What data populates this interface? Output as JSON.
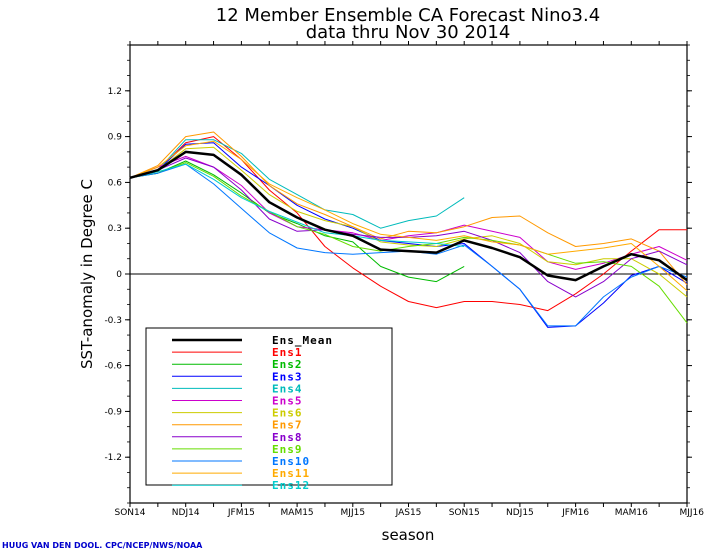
{
  "header": {
    "title_line1": "12 Member Ensemble CA Forecast Nino3.4",
    "title_line2": "data thru Nov 30 2014"
  },
  "credit": "HUUG VAN DEN DOOL. CPC/NCEP/NWS/NOAA",
  "chart_data": {
    "type": "line",
    "xlabel": "season",
    "ylabel": "SST-anomaly in Degree C",
    "ylim": [
      -1.5,
      1.5
    ],
    "grid": false,
    "legend_position": "bottom-left",
    "x": [
      "SON14",
      "OND14",
      "NDJ14",
      "DJF15",
      "JFM15",
      "FMA15",
      "MAM15",
      "AMJ15",
      "MJJ15",
      "JJA15",
      "JAS15",
      "ASO15",
      "SON15",
      "OND15",
      "NDJ15",
      "DJF16",
      "JFM16",
      "FMA16",
      "MAM16",
      "AMJ16",
      "MJJ16"
    ],
    "x_tick_labels": [
      "SON14",
      "NDJ14",
      "JFM15",
      "MAM15",
      "MJJ15",
      "JAS15",
      "SON15",
      "NDJ15",
      "JFM16",
      "MAM16",
      "MJJ16"
    ],
    "y_ticks": [
      1.2,
      0.9,
      0.6,
      0.3,
      0,
      -0.3,
      -0.6,
      -0.9,
      -1.2
    ],
    "y_tick_labels": [
      "1.2",
      "0.9",
      "0.6",
      "0.3",
      "0",
      "-0.3",
      "-0.6",
      "-0.9",
      "-1.2"
    ],
    "series": [
      {
        "name": "Ens_Mean",
        "color": "#000000",
        "width": 2.5,
        "values": [
          0.63,
          0.68,
          0.8,
          0.78,
          0.65,
          0.47,
          0.37,
          0.29,
          0.25,
          0.16,
          0.15,
          0.14,
          0.22,
          0.17,
          0.11,
          -0.01,
          -0.04,
          0.05,
          0.13,
          0.09,
          -0.04
        ]
      },
      {
        "name": "Ens1",
        "color": "#ff0000",
        "width": 1,
        "values": [
          0.63,
          0.68,
          0.86,
          0.9,
          0.75,
          0.55,
          0.4,
          0.18,
          0.04,
          -0.08,
          -0.18,
          -0.22,
          -0.18,
          -0.18,
          -0.2,
          -0.24,
          -0.13,
          0.0,
          0.15,
          0.29,
          0.29
        ]
      },
      {
        "name": "Ens2",
        "color": "#00bb00",
        "width": 1,
        "values": [
          0.63,
          0.66,
          0.74,
          0.65,
          0.53,
          0.4,
          0.33,
          0.25,
          0.21,
          0.05,
          -0.02,
          -0.05,
          0.05,
          null,
          null,
          null,
          null,
          null,
          null,
          null,
          null
        ]
      },
      {
        "name": "Ens3",
        "color": "#0000ff",
        "width": 1,
        "values": [
          0.63,
          0.68,
          0.85,
          0.86,
          0.7,
          0.58,
          0.45,
          0.36,
          0.3,
          0.22,
          0.2,
          0.18,
          0.2,
          0.05,
          -0.1,
          -0.35,
          -0.34,
          -0.19,
          -0.01,
          0.05,
          -0.06
        ]
      },
      {
        "name": "Ens4",
        "color": "#00bbbb",
        "width": 1,
        "values": [
          0.63,
          0.68,
          0.88,
          0.88,
          0.79,
          0.62,
          0.52,
          0.42,
          0.39,
          0.3,
          0.35,
          0.38,
          0.5,
          null,
          null,
          null,
          null,
          null,
          null,
          null,
          null
        ]
      },
      {
        "name": "Ens5",
        "color": "#cc00cc",
        "width": 1,
        "values": [
          0.63,
          0.7,
          0.77,
          0.7,
          0.58,
          0.4,
          0.31,
          0.29,
          0.27,
          0.22,
          0.25,
          0.27,
          0.32,
          0.28,
          0.24,
          0.08,
          0.03,
          0.07,
          0.13,
          0.18,
          0.09
        ]
      },
      {
        "name": "Ens6",
        "color": "#cccc00",
        "width": 1,
        "values": [
          0.63,
          0.68,
          0.82,
          0.83,
          0.68,
          0.52,
          0.41,
          0.35,
          0.31,
          0.21,
          0.19,
          0.18,
          0.23,
          0.25,
          0.2,
          0.08,
          0.06,
          0.1,
          0.1,
          0.0,
          -0.15
        ]
      },
      {
        "name": "Ens7",
        "color": "#ff9900",
        "width": 1,
        "values": [
          0.63,
          0.71,
          0.9,
          0.93,
          0.77,
          0.58,
          0.46,
          0.39,
          0.31,
          0.23,
          0.28,
          0.27,
          0.31,
          0.37,
          0.38,
          0.27,
          0.18,
          0.2,
          0.23,
          0.15,
          -0.07
        ]
      },
      {
        "name": "Ens8",
        "color": "#8800cc",
        "width": 1,
        "values": [
          0.63,
          0.68,
          0.76,
          0.7,
          0.55,
          0.36,
          0.28,
          0.29,
          0.26,
          0.24,
          0.24,
          0.25,
          0.28,
          0.22,
          0.14,
          -0.05,
          -0.15,
          -0.05,
          0.1,
          0.15,
          0.06
        ]
      },
      {
        "name": "Ens9",
        "color": "#66dd00",
        "width": 1,
        "values": [
          0.63,
          0.66,
          0.73,
          0.64,
          0.51,
          0.41,
          0.31,
          0.26,
          0.18,
          0.15,
          0.18,
          0.2,
          0.24,
          0.22,
          0.19,
          0.13,
          0.07,
          0.08,
          0.05,
          -0.08,
          -0.32
        ]
      },
      {
        "name": "Ens10",
        "color": "#0077ff",
        "width": 1,
        "values": [
          0.63,
          0.66,
          0.72,
          0.59,
          0.43,
          0.27,
          0.17,
          0.14,
          0.13,
          0.14,
          0.15,
          0.13,
          0.19,
          0.05,
          -0.1,
          -0.34,
          -0.34,
          -0.15,
          -0.02,
          0.05,
          -0.02
        ]
      },
      {
        "name": "Ens11",
        "color": "#ffaa00",
        "width": 1,
        "values": [
          0.63,
          0.7,
          0.84,
          0.87,
          0.75,
          0.59,
          0.5,
          0.42,
          0.33,
          0.26,
          0.24,
          0.22,
          0.25,
          0.21,
          0.19,
          0.13,
          0.15,
          0.17,
          0.2,
          0.05,
          -0.11
        ]
      },
      {
        "name": "Ens12",
        "color": "#00cccc",
        "width": 1,
        "values": [
          0.63,
          0.67,
          0.72,
          0.62,
          0.5,
          0.41,
          0.34,
          0.27,
          0.25,
          0.22,
          0.21,
          0.2,
          0.18,
          null,
          null,
          null,
          null,
          null,
          null,
          null,
          null
        ]
      }
    ]
  }
}
